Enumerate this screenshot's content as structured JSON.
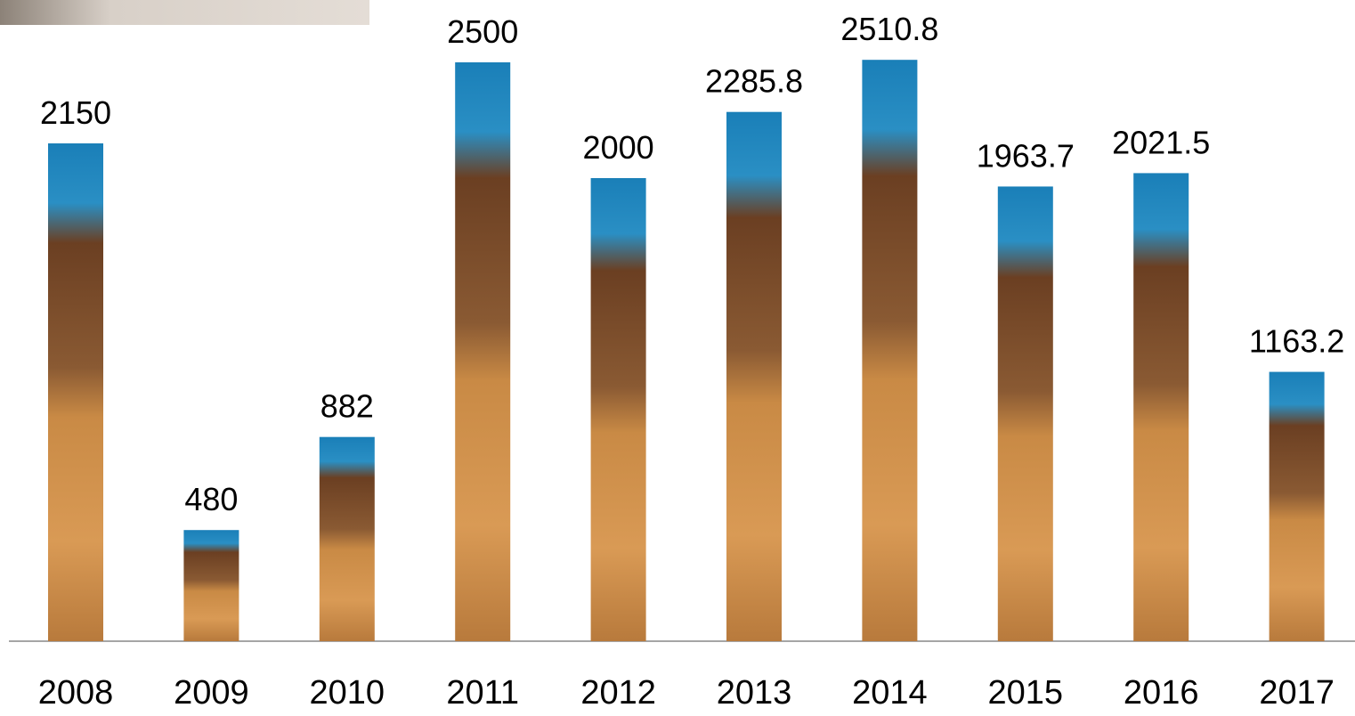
{
  "chart_data": {
    "type": "bar",
    "categories": [
      "2008",
      "2009",
      "2010",
      "2011",
      "2012",
      "2013",
      "2014",
      "2015",
      "2016",
      "2017"
    ],
    "values": [
      2150,
      480,
      882,
      2500,
      2000,
      2285.8,
      2510.8,
      1963.7,
      2021.5,
      1163.2
    ]
  }
}
